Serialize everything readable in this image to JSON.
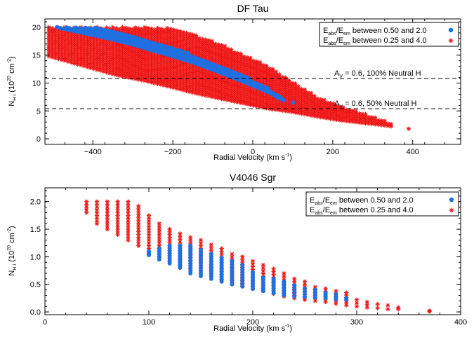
{
  "chart_data": [
    {
      "type": "scatter",
      "title": "DF Tau",
      "xlabel": "Radial Velocity (km s",
      "xlabel_sup": "-1",
      "xlabel_close": ")",
      "ylabel_main": "N",
      "ylabel_sub": "H I",
      "ylabel_rest": " (10",
      "ylabel_sup1": "20",
      "ylabel_mid": " cm",
      "ylabel_sup2": "-2",
      "ylabel_close": ")",
      "xlim": [
        -520,
        520
      ],
      "ylim": [
        -1,
        21.5
      ],
      "xticks": [
        -400,
        -200,
        0,
        200,
        400
      ],
      "xticklabels": [
        "−400",
        "−200",
        "0",
        "200",
        "400"
      ],
      "yticks": [
        0,
        5,
        10,
        15,
        20
      ],
      "yticklabels": [
        "0",
        "5",
        "10",
        "15",
        "20"
      ],
      "grid": false,
      "legend_position": "top-right",
      "series": [
        {
          "name": "E_abs/E_em between 0.50 and 2.0",
          "legend_parts": [
            "E",
            "abs",
            "/E",
            "em",
            " between 0.50 and 2.0"
          ],
          "marker": "circle",
          "color": "#1f6fe0",
          "band": [
            [
              -490,
              20.0,
              20.0
            ],
            [
              -440,
              19.2,
              20.0
            ],
            [
              -400,
              18.6,
              20.0
            ],
            [
              -350,
              17.8,
              19.4
            ],
            [
              -300,
              16.9,
              18.5
            ],
            [
              -250,
              15.8,
              17.5
            ],
            [
              -200,
              14.8,
              16.3
            ],
            [
              -160,
              13.9,
              15.3
            ],
            [
              -120,
              12.9,
              14.2
            ],
            [
              -80,
              11.8,
              13.1
            ],
            [
              -40,
              10.7,
              11.9
            ],
            [
              0,
              9.5,
              10.5
            ],
            [
              40,
              8.3,
              9.0
            ],
            [
              70,
              7.1,
              7.6
            ],
            [
              80,
              6.9,
              7.1
            ]
          ],
          "points": [
            [
              100,
              6.5
            ]
          ]
        },
        {
          "name": "E_abs/E_em between 0.25 and 4.0",
          "legend_parts": [
            "E",
            "abs",
            "/E",
            "em",
            " between 0.25 and 4.0"
          ],
          "marker": "asterisk",
          "color": "#ee1111",
          "band": [
            [
              -510,
              14.8,
              20.0
            ],
            [
              -460,
              13.8,
              20.0
            ],
            [
              -400,
              12.6,
              20.0
            ],
            [
              -340,
              11.4,
              20.0
            ],
            [
              -270,
              10.4,
              20.0
            ],
            [
              -200,
              9.2,
              19.8
            ],
            [
              -140,
              8.1,
              18.5
            ],
            [
              -80,
              7.2,
              17.0
            ],
            [
              -20,
              6.3,
              15.0
            ],
            [
              40,
              5.4,
              13.0
            ],
            [
              100,
              4.8,
              10.2
            ],
            [
              160,
              4.0,
              7.6
            ],
            [
              220,
              3.3,
              5.8
            ],
            [
              280,
              2.8,
              4.5
            ],
            [
              330,
              2.4,
              3.2
            ],
            [
              350,
              2.2,
              2.7
            ]
          ],
          "points": [
            [
              390,
              1.8
            ]
          ]
        }
      ],
      "annotations": [
        {
          "y": 10.8,
          "text_main": "A",
          "text_sub": "V",
          "text_rest": " = 0.6, 100% Neutral H"
        },
        {
          "y": 5.4,
          "text_main": "A",
          "text_sub": "V",
          "text_rest": " = 0.6,   50% Neutral H"
        }
      ]
    },
    {
      "type": "scatter",
      "title": "V4046 Sgr",
      "xlabel": "Radial Velocity (km s",
      "xlabel_sup": "-1",
      "xlabel_close": ")",
      "ylabel_main": "N",
      "ylabel_sub": "H I",
      "ylabel_rest": " (10",
      "ylabel_sup1": "20",
      "ylabel_mid": " cm",
      "ylabel_sup2": "-2",
      "ylabel_close": ")",
      "xlim": [
        0,
        400
      ],
      "ylim": [
        -0.05,
        2.25
      ],
      "xticks": [
        0,
        100,
        200,
        300,
        400
      ],
      "xticklabels": [
        "0",
        "100",
        "200",
        "300",
        "400"
      ],
      "yticks": [
        0.0,
        0.5,
        1.0,
        1.5,
        2.0
      ],
      "yticklabels": [
        "0.0",
        "0.5",
        "1.0",
        "1.5",
        "2.0"
      ],
      "grid": false,
      "legend_position": "top-right",
      "series": [
        {
          "name": "E_abs/E_em between 0.50 and 2.0",
          "legend_parts": [
            "E",
            "abs",
            "/E",
            "em",
            " between 0.50 and 2.0"
          ],
          "marker": "circle",
          "color": "#1f6fe0",
          "columns": [
            [
              100,
              1.03,
              1.1
            ],
            [
              110,
              0.95,
              1.15
            ],
            [
              120,
              0.88,
              1.2
            ],
            [
              130,
              0.8,
              1.2
            ],
            [
              140,
              0.7,
              1.2
            ],
            [
              150,
              0.65,
              1.12
            ],
            [
              160,
              0.6,
              1.05
            ],
            [
              170,
              0.55,
              0.98
            ],
            [
              180,
              0.5,
              0.92
            ],
            [
              190,
              0.46,
              0.85
            ],
            [
              200,
              0.42,
              0.72
            ],
            [
              210,
              0.38,
              0.62
            ],
            [
              220,
              0.34,
              0.6
            ],
            [
              230,
              0.3,
              0.55
            ],
            [
              240,
              0.28,
              0.48
            ],
            [
              250,
              0.27,
              0.42
            ],
            [
              260,
              0.26,
              0.4
            ],
            [
              270,
              0.25,
              0.35
            ],
            [
              280,
              0.23,
              0.32
            ],
            [
              290,
              0.22,
              0.25
            ]
          ]
        },
        {
          "name": "E_abs/E_em between 0.25 and 4.0",
          "legend_parts": [
            "E",
            "abs",
            "/E",
            "em",
            " between 0.25 and 4.0"
          ],
          "marker": "asterisk",
          "color": "#ee1111",
          "columns": [
            [
              40,
              1.8,
              2.0
            ],
            [
              50,
              1.6,
              2.0
            ],
            [
              60,
              1.5,
              2.0
            ],
            [
              70,
              1.4,
              2.0
            ],
            [
              80,
              1.3,
              2.0
            ],
            [
              90,
              1.2,
              1.92
            ],
            [
              100,
              1.05,
              1.75
            ],
            [
              110,
              1.0,
              1.6
            ],
            [
              120,
              0.92,
              1.5
            ],
            [
              130,
              0.85,
              1.42
            ],
            [
              140,
              0.78,
              1.35
            ],
            [
              150,
              0.7,
              1.3
            ],
            [
              160,
              0.65,
              1.22
            ],
            [
              170,
              0.58,
              1.15
            ],
            [
              180,
              0.52,
              1.05
            ],
            [
              190,
              0.47,
              1.0
            ],
            [
              200,
              0.42,
              0.92
            ],
            [
              210,
              0.38,
              0.85
            ],
            [
              220,
              0.33,
              0.78
            ],
            [
              230,
              0.28,
              0.7
            ],
            [
              240,
              0.25,
              0.6
            ],
            [
              250,
              0.22,
              0.55
            ],
            [
              260,
              0.2,
              0.45
            ],
            [
              270,
              0.18,
              0.42
            ],
            [
              280,
              0.15,
              0.38
            ],
            [
              290,
              0.12,
              0.35
            ],
            [
              300,
              0.1,
              0.22
            ],
            [
              310,
              0.08,
              0.18
            ],
            [
              320,
              0.07,
              0.14
            ],
            [
              330,
              0.05,
              0.12
            ],
            [
              340,
              0.05,
              0.08
            ],
            [
              370,
              0.01,
              0.02
            ]
          ]
        }
      ]
    }
  ]
}
